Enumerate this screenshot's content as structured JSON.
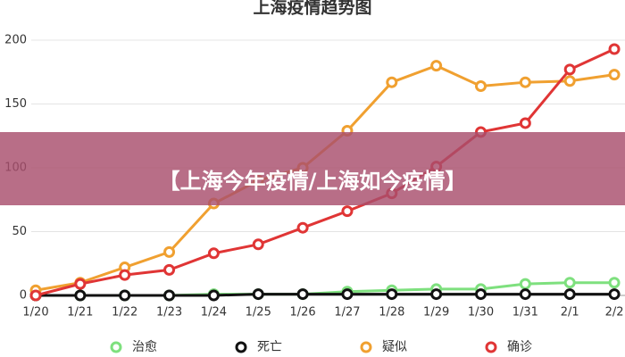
{
  "chart_data": {
    "type": "line",
    "title": "上海疫情趋势图",
    "annotation": "【上海今年疫情/上海如今疫情】",
    "categories": [
      "1/20",
      "1/21",
      "1/22",
      "1/23",
      "1/24",
      "1/25",
      "1/26",
      "1/27",
      "1/28",
      "1/29",
      "1/30",
      "1/31",
      "2/1",
      "2/2"
    ],
    "series": [
      {
        "name": "治愈",
        "color": "#7ee07e",
        "values": [
          0,
          0,
          0,
          0,
          1,
          1,
          1,
          3,
          4,
          5,
          5,
          9,
          10,
          10
        ]
      },
      {
        "name": "死亡",
        "color": "#111111",
        "values": [
          0,
          0,
          0,
          0,
          0,
          1,
          1,
          1,
          1,
          1,
          1,
          1,
          1,
          1
        ]
      },
      {
        "name": "疑似",
        "color": "#f0a030",
        "values": [
          4,
          10,
          22,
          34,
          72,
          90,
          100,
          129,
          167,
          180,
          164,
          167,
          168,
          173
        ]
      },
      {
        "name": "确诊",
        "color": "#e03535",
        "values": [
          0,
          9,
          16,
          20,
          33,
          40,
          53,
          66,
          80,
          101,
          128,
          135,
          177,
          193
        ]
      }
    ],
    "ylim": [
      0,
      200
    ],
    "yticks": [
      0,
      50,
      100,
      150,
      200
    ],
    "grid": true
  }
}
